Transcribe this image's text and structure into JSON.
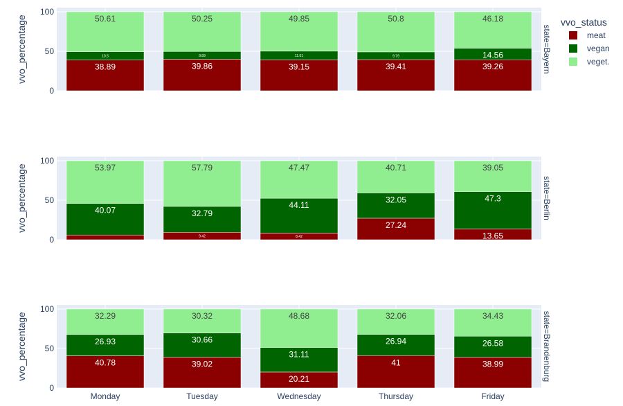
{
  "chart_data": {
    "type": "bar",
    "stacked": true,
    "facet": "row",
    "categories": [
      "Monday",
      "Tuesday",
      "Wednesday",
      "Thursday",
      "Friday"
    ],
    "ylabel": "vvo_percentage",
    "ylim": [
      0,
      100
    ],
    "yticks": [
      0,
      50,
      100
    ],
    "grid": true,
    "legend": {
      "title": "vvo_status",
      "placement": "top-right",
      "items": [
        {
          "key": "meat",
          "label": "meat",
          "color": "#8b0000"
        },
        {
          "key": "vegan",
          "label": "vegan",
          "color": "#006400"
        },
        {
          "key": "veget",
          "label": "veget.",
          "color": "#90ee90"
        }
      ]
    },
    "panels": [
      {
        "facet_label": "state=Bayern",
        "series": [
          {
            "key": "meat",
            "values": [
              38.89,
              39.86,
              39.15,
              39.41,
              39.26
            ],
            "labels": [
              "38.89",
              "39.86",
              "39.15",
              "39.41",
              "39.26"
            ]
          },
          {
            "key": "vegan",
            "values": [
              10.5,
              9.89,
              11.01,
              9.79,
              14.56
            ],
            "labels": [
              "10.5",
              "9.89",
              "11.01",
              "9.79",
              "14.56"
            ]
          },
          {
            "key": "veget",
            "values": [
              50.61,
              50.25,
              49.85,
              50.8,
              46.18
            ],
            "labels": [
              "50.61",
              "50.25",
              "49.85",
              "50.8",
              "46.18"
            ]
          }
        ]
      },
      {
        "facet_label": "state=Berlin",
        "series": [
          {
            "key": "meat",
            "values": [
              5.96,
              9.42,
              8.42,
              27.24,
              13.65
            ],
            "labels": [
              "",
              "9.42",
              "8.42",
              "27.24",
              "13.65"
            ]
          },
          {
            "key": "vegan",
            "values": [
              40.07,
              32.79,
              44.11,
              32.05,
              47.3
            ],
            "labels": [
              "40.07",
              "32.79",
              "44.11",
              "32.05",
              "47.3"
            ]
          },
          {
            "key": "veget",
            "values": [
              53.97,
              57.79,
              47.47,
              40.71,
              39.05
            ],
            "labels": [
              "53.97",
              "57.79",
              "47.47",
              "40.71",
              "39.05"
            ]
          }
        ]
      },
      {
        "facet_label": "state=Brandenburg",
        "series": [
          {
            "key": "meat",
            "values": [
              40.78,
              39.02,
              20.21,
              41,
              38.99
            ],
            "labels": [
              "40.78",
              "39.02",
              "20.21",
              "41",
              "38.99"
            ]
          },
          {
            "key": "vegan",
            "values": [
              26.93,
              30.66,
              31.11,
              26.94,
              26.58
            ],
            "labels": [
              "26.93",
              "30.66",
              "31.11",
              "26.94",
              "26.58"
            ]
          },
          {
            "key": "veget",
            "values": [
              32.29,
              30.32,
              48.68,
              32.06,
              34.43
            ],
            "labels": [
              "32.29",
              "30.32",
              "48.68",
              "32.06",
              "34.43"
            ]
          }
        ]
      }
    ]
  }
}
